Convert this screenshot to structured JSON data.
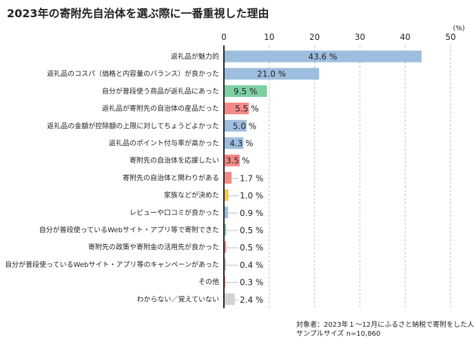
{
  "chart_data": {
    "type": "bar",
    "orientation": "horizontal",
    "title": "2023年の寄附先自治体を選ぶ際に一番重視した理由",
    "unit": "(%)",
    "xlim": [
      0,
      50
    ],
    "xticks": [
      0,
      10,
      20,
      30,
      40,
      50
    ],
    "grid": true,
    "categories": [
      "返礼品が魅力的",
      "返礼品のコスパ（価格と内容量のバランス）が良かった",
      "自分が普段使う商品が返礼品にあった",
      "返礼品が寄附先の自治体の産品だった",
      "返礼品の金額が控除額の上限に対してちょうどよかった",
      "返礼品のポイント付与率が高かった",
      "寄附先の自治体を応援したい",
      "寄附先の自治体と関わりがある",
      "家族などが決めた",
      "レビューや口コミが良かった",
      "自分が普段使っているWebサイト・アプリ等で寄附できた",
      "寄附先の政策や寄附金の活用先が良かった",
      "自分が普段使っているWebサイト・アプリ等のキャンペーンがあった",
      "その他",
      "わからない／覚えていない"
    ],
    "values": [
      43.6,
      21.0,
      9.5,
      5.5,
      5.0,
      4.3,
      3.5,
      1.7,
      1.0,
      0.9,
      0.5,
      0.5,
      0.4,
      0.3,
      2.4
    ],
    "value_labels": [
      "43.6 %",
      "21.0 %",
      "9.5 %",
      "5.5 %",
      "5.0 %",
      "4.3 %",
      "3.5 %",
      "1.7 %",
      "1.0 %",
      "0.9 %",
      "0.5 %",
      "0.5 %",
      "0.4 %",
      "0.3 %",
      "2.4 %"
    ],
    "bar_colors": [
      "#9dbedf",
      "#9dbedf",
      "#7ecfa4",
      "#f48a87",
      "#9dbedf",
      "#9dbedf",
      "#f48a87",
      "#f48a87",
      "#f7c84b",
      "#9dbedf",
      "#7ecfa4",
      "#f48a87",
      "#9dbedf",
      "#f48a87",
      "#d4d4d4"
    ]
  },
  "footnote": {
    "line1": "対象者：2023年１～12月にふるさと納税で寄附をした人",
    "line2": "サンプルサイズ n=10,860"
  }
}
